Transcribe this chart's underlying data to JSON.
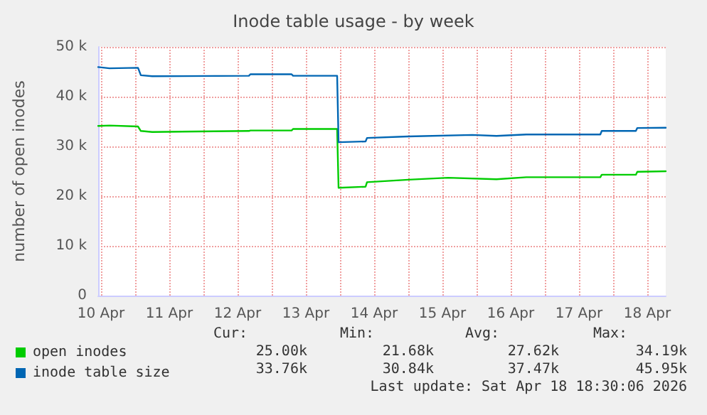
{
  "chart_data": {
    "type": "line",
    "title": "Inode table usage - by week",
    "ylabel": "number of open inodes",
    "xlim": [
      "2026-04-10T11:00",
      "2026-04-18T18:30"
    ],
    "xticks": [
      {
        "value": "2026-04-10T12:00",
        "label": "10 Apr"
      },
      {
        "value": "2026-04-11T00:00",
        "label": null
      },
      {
        "value": "2026-04-11T12:00",
        "label": "11 Apr"
      },
      {
        "value": "2026-04-12T00:00",
        "label": null
      },
      {
        "value": "2026-04-12T12:00",
        "label": "12 Apr"
      },
      {
        "value": "2026-04-13T00:00",
        "label": null
      },
      {
        "value": "2026-04-13T12:00",
        "label": "13 Apr"
      },
      {
        "value": "2026-04-14T00:00",
        "label": null
      },
      {
        "value": "2026-04-14T12:00",
        "label": "14 Apr"
      },
      {
        "value": "2026-04-15T00:00",
        "label": null
      },
      {
        "value": "2026-04-15T12:00",
        "label": "15 Apr"
      },
      {
        "value": "2026-04-16T00:00",
        "label": null
      },
      {
        "value": "2026-04-16T12:00",
        "label": "16 Apr"
      },
      {
        "value": "2026-04-17T00:00",
        "label": null
      },
      {
        "value": "2026-04-17T12:00",
        "label": "17 Apr"
      },
      {
        "value": "2026-04-18T00:00",
        "label": null
      },
      {
        "value": "2026-04-18T12:00",
        "label": "18 Apr"
      }
    ],
    "ylim": [
      0,
      50000
    ],
    "yticks": [
      0,
      {
        "value": 10000,
        "label": "10 k"
      },
      {
        "value": 20000,
        "label": "20 k"
      },
      {
        "value": 30000,
        "label": "30 k"
      },
      {
        "value": 40000,
        "label": "40 k"
      },
      {
        "value": 50000,
        "label": "50 k"
      }
    ],
    "grid": true,
    "legend": "bottom left",
    "marker": "none",
    "line_style": "solid",
    "series": [
      {
        "name": "open inodes",
        "color": "#00cc00",
        "x": [
          "2026-04-10T11:00",
          "2026-04-10T15:00",
          "2026-04-11T01:00",
          "2026-04-11T02:00",
          "2026-04-11T06:00",
          "2026-04-12T16:00",
          "2026-04-12T16:30",
          "2026-04-13T07:00",
          "2026-04-13T07:30",
          "2026-04-13T23:00",
          "2026-04-13T23:30",
          "2026-04-14T09:00",
          "2026-04-14T09:30",
          "2026-04-15T00:00",
          "2026-04-15T14:00",
          "2026-04-16T07:00",
          "2026-04-16T17:30",
          "2026-04-17T19:30",
          "2026-04-17T20:00",
          "2026-04-18T08:00",
          "2026-04-18T08:30",
          "2026-04-18T18:30"
        ],
        "values": [
          34100,
          34190,
          34000,
          33100,
          32900,
          33100,
          33200,
          33200,
          33500,
          33500,
          21680,
          21900,
          22800,
          23300,
          23700,
          23400,
          23800,
          23800,
          24300,
          24300,
          24900,
          25000
        ]
      },
      {
        "name": "inode table size",
        "color": "#0066b3",
        "x": [
          "2026-04-10T11:00",
          "2026-04-10T15:00",
          "2026-04-11T01:00",
          "2026-04-11T02:00",
          "2026-04-11T06:00",
          "2026-04-12T16:00",
          "2026-04-12T16:30",
          "2026-04-13T07:00",
          "2026-04-13T07:30",
          "2026-04-13T23:00",
          "2026-04-13T23:30",
          "2026-04-14T09:00",
          "2026-04-14T09:30",
          "2026-04-15T00:00",
          "2026-04-15T22:30",
          "2026-04-16T07:00",
          "2026-04-16T17:30",
          "2026-04-17T19:30",
          "2026-04-17T20:00",
          "2026-04-18T08:00",
          "2026-04-18T08:30",
          "2026-04-18T18:30"
        ],
        "values": [
          45950,
          45700,
          45800,
          44300,
          44100,
          44200,
          44500,
          44500,
          44200,
          44200,
          30840,
          31000,
          31700,
          32000,
          32300,
          32100,
          32400,
          32400,
          33100,
          33100,
          33700,
          33760
        ]
      }
    ],
    "annotations": [
      "Cur:",
      "Min:",
      "Avg:",
      "Max:",
      "25.00k",
      "21.68k",
      "27.62k",
      "34.19k",
      "33.76k",
      "30.84k",
      "37.47k",
      "45.95k",
      "Last update: Sat Apr 18 18:30:06 2026"
    ]
  }
}
